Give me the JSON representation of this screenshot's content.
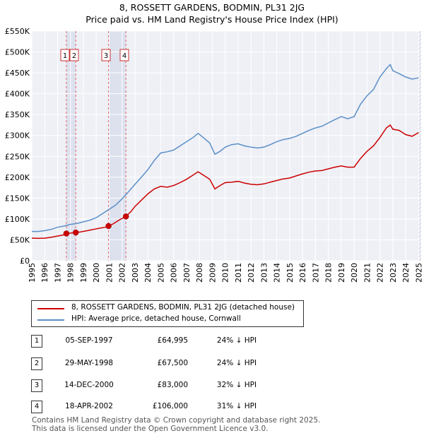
{
  "header": {
    "title": "8, ROSSETT GARDENS, BODMIN, PL31 2JG",
    "subtitle": "Price paid vs. HM Land Registry's House Price Index (HPI)"
  },
  "chart_data": {
    "type": "line",
    "x_range": [
      1995,
      2025.2
    ],
    "ylim": [
      0,
      550000
    ],
    "y_ticks": [
      0,
      50000,
      100000,
      150000,
      200000,
      250000,
      300000,
      350000,
      400000,
      450000,
      500000,
      550000
    ],
    "y_tick_labels": [
      "£0",
      "£50K",
      "£100K",
      "£150K",
      "£200K",
      "£250K",
      "£300K",
      "£350K",
      "£400K",
      "£450K",
      "£500K",
      "£550K"
    ],
    "x_ticks": [
      1995,
      1996,
      1997,
      1998,
      1999,
      2000,
      2001,
      2002,
      2003,
      2004,
      2005,
      2006,
      2007,
      2008,
      2009,
      2010,
      2011,
      2012,
      2013,
      2014,
      2015,
      2016,
      2017,
      2018,
      2019,
      2020,
      2021,
      2022,
      2023,
      2024,
      2025
    ],
    "x_tick_labels": [
      "1995",
      "1996",
      "1997",
      "1998",
      "1999",
      "2000",
      "2001",
      "2002",
      "2003",
      "2004",
      "2005",
      "2006",
      "2007",
      "2008",
      "2009",
      "2010",
      "2011",
      "2012",
      "2013",
      "2014",
      "2015",
      "2016",
      "2017",
      "2018",
      "2019",
      "2020",
      "2021",
      "2022",
      "2023",
      "2024",
      "2025"
    ],
    "grid": true,
    "series": [
      {
        "name": "8, ROSSETT GARDENS, BODMIN, PL31 2JG (detached house)",
        "color": "#cc0000",
        "points": [
          [
            1995.0,
            54000
          ],
          [
            1995.5,
            53500
          ],
          [
            1996.0,
            54000
          ],
          [
            1996.5,
            56000
          ],
          [
            1997.0,
            59000
          ],
          [
            1997.5,
            62000
          ],
          [
            1997.68,
            64995
          ],
          [
            1998.0,
            66000
          ],
          [
            1998.41,
            67500
          ],
          [
            1998.8,
            69000
          ],
          [
            1999.3,
            72000
          ],
          [
            1999.8,
            75000
          ],
          [
            2000.3,
            78000
          ],
          [
            2000.7,
            80000
          ],
          [
            2000.95,
            83000
          ],
          [
            2001.3,
            88000
          ],
          [
            2001.8,
            98000
          ],
          [
            2002.3,
            106000
          ],
          [
            2002.7,
            118000
          ],
          [
            2003.0,
            130000
          ],
          [
            2003.5,
            145000
          ],
          [
            2004.0,
            160000
          ],
          [
            2004.5,
            172000
          ],
          [
            2005.0,
            178000
          ],
          [
            2005.5,
            176000
          ],
          [
            2006.0,
            180000
          ],
          [
            2006.5,
            187000
          ],
          [
            2007.0,
            195000
          ],
          [
            2007.5,
            205000
          ],
          [
            2007.9,
            213000
          ],
          [
            2008.3,
            205000
          ],
          [
            2008.8,
            195000
          ],
          [
            2009.2,
            172000
          ],
          [
            2009.6,
            180000
          ],
          [
            2010.0,
            187000
          ],
          [
            2010.5,
            188000
          ],
          [
            2011.0,
            190000
          ],
          [
            2011.5,
            186000
          ],
          [
            2012.0,
            183000
          ],
          [
            2012.5,
            182000
          ],
          [
            2013.0,
            184000
          ],
          [
            2013.5,
            188000
          ],
          [
            2014.0,
            192000
          ],
          [
            2014.5,
            196000
          ],
          [
            2015.0,
            198000
          ],
          [
            2015.5,
            203000
          ],
          [
            2016.0,
            208000
          ],
          [
            2016.5,
            212000
          ],
          [
            2017.0,
            215000
          ],
          [
            2017.5,
            216000
          ],
          [
            2018.0,
            220000
          ],
          [
            2018.5,
            224000
          ],
          [
            2019.0,
            227000
          ],
          [
            2019.5,
            224000
          ],
          [
            2020.0,
            224000
          ],
          [
            2020.5,
            245000
          ],
          [
            2021.0,
            262000
          ],
          [
            2021.5,
            275000
          ],
          [
            2022.0,
            295000
          ],
          [
            2022.5,
            318000
          ],
          [
            2022.8,
            325000
          ],
          [
            2023.0,
            315000
          ],
          [
            2023.5,
            312000
          ],
          [
            2024.0,
            302000
          ],
          [
            2024.5,
            298000
          ],
          [
            2025.0,
            307000
          ]
        ]
      },
      {
        "name": "HPI: Average price, detached house, Cornwall",
        "color": "#5b8fc7",
        "points": [
          [
            1995.0,
            70000
          ],
          [
            1995.5,
            70000
          ],
          [
            1996.0,
            72000
          ],
          [
            1996.5,
            75000
          ],
          [
            1997.0,
            80000
          ],
          [
            1997.5,
            83000
          ],
          [
            1998.0,
            87000
          ],
          [
            1998.5,
            89000
          ],
          [
            1999.0,
            93000
          ],
          [
            1999.5,
            97000
          ],
          [
            2000.0,
            103000
          ],
          [
            2000.5,
            113000
          ],
          [
            2001.0,
            123000
          ],
          [
            2001.5,
            133000
          ],
          [
            2002.0,
            148000
          ],
          [
            2002.5,
            165000
          ],
          [
            2003.0,
            183000
          ],
          [
            2003.5,
            200000
          ],
          [
            2004.0,
            218000
          ],
          [
            2004.5,
            240000
          ],
          [
            2005.0,
            258000
          ],
          [
            2005.5,
            261000
          ],
          [
            2006.0,
            265000
          ],
          [
            2006.5,
            275000
          ],
          [
            2007.0,
            285000
          ],
          [
            2007.5,
            295000
          ],
          [
            2007.9,
            305000
          ],
          [
            2008.3,
            295000
          ],
          [
            2008.8,
            282000
          ],
          [
            2009.2,
            255000
          ],
          [
            2009.6,
            262000
          ],
          [
            2010.0,
            272000
          ],
          [
            2010.5,
            278000
          ],
          [
            2011.0,
            280000
          ],
          [
            2011.5,
            275000
          ],
          [
            2012.0,
            272000
          ],
          [
            2012.5,
            270000
          ],
          [
            2013.0,
            272000
          ],
          [
            2013.5,
            278000
          ],
          [
            2014.0,
            285000
          ],
          [
            2014.5,
            290000
          ],
          [
            2015.0,
            293000
          ],
          [
            2015.5,
            298000
          ],
          [
            2016.0,
            305000
          ],
          [
            2016.5,
            312000
          ],
          [
            2017.0,
            318000
          ],
          [
            2017.5,
            322000
          ],
          [
            2018.0,
            330000
          ],
          [
            2018.5,
            338000
          ],
          [
            2019.0,
            345000
          ],
          [
            2019.5,
            340000
          ],
          [
            2020.0,
            345000
          ],
          [
            2020.5,
            375000
          ],
          [
            2021.0,
            395000
          ],
          [
            2021.5,
            410000
          ],
          [
            2022.0,
            440000
          ],
          [
            2022.5,
            460000
          ],
          [
            2022.8,
            470000
          ],
          [
            2023.0,
            455000
          ],
          [
            2023.5,
            448000
          ],
          [
            2024.0,
            440000
          ],
          [
            2024.5,
            435000
          ],
          [
            2025.0,
            438000
          ]
        ]
      }
    ],
    "sales": [
      {
        "num": "1",
        "x": 1997.68,
        "price": 64995
      },
      {
        "num": "2",
        "x": 1998.41,
        "price": 67500
      },
      {
        "num": "3",
        "x": 2000.95,
        "price": 83000
      },
      {
        "num": "4",
        "x": 2002.3,
        "price": 106000
      }
    ],
    "legend_placement": "below"
  },
  "legend": {
    "items": [
      {
        "label": "8, ROSSETT GARDENS, BODMIN, PL31 2JG (detached house)",
        "color": "#cc0000"
      },
      {
        "label": "HPI: Average price, detached house, Cornwall",
        "color": "#5b8fc7"
      }
    ]
  },
  "transactions": [
    {
      "num": "1",
      "date": "05-SEP-1997",
      "price": "£64,995",
      "hpi": "24% ↓ HPI"
    },
    {
      "num": "2",
      "date": "29-MAY-1998",
      "price": "£67,500",
      "hpi": "24% ↓ HPI"
    },
    {
      "num": "3",
      "date": "14-DEC-2000",
      "price": "£83,000",
      "hpi": "32% ↓ HPI"
    },
    {
      "num": "4",
      "date": "18-APR-2002",
      "price": "£106,000",
      "hpi": "31% ↓ HPI"
    }
  ],
  "footer": {
    "line1": "Contains HM Land Registry data © Crown copyright and database right 2025.",
    "line2": "This data is licensed under the Open Government Licence v3.0."
  }
}
